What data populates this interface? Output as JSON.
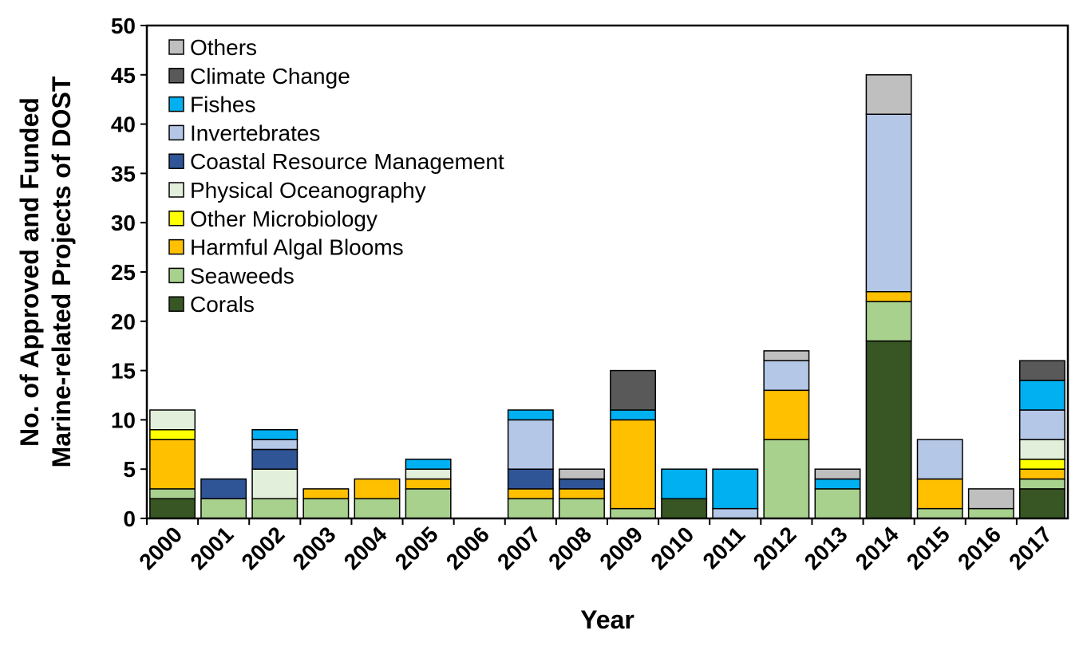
{
  "chart_data": {
    "type": "bar",
    "stacked": true,
    "title": "",
    "xlabel": "Year",
    "ylabel_line1": "No. of Approved and Funded",
    "ylabel_line2": "Marine-related Projects of DOST",
    "ylim": [
      0,
      50
    ],
    "ytick_step": 5,
    "grid": false,
    "legend_position": "top-left",
    "categories": [
      "2000",
      "2001",
      "2002",
      "2003",
      "2004",
      "2005",
      "2006",
      "2007",
      "2008",
      "2009",
      "2010",
      "2011",
      "2012",
      "2013",
      "2014",
      "2015",
      "2016",
      "2017"
    ],
    "series": [
      {
        "name": "Corals",
        "color": "#375623",
        "values": [
          2,
          0,
          0,
          0,
          0,
          0,
          0,
          0,
          0,
          0,
          2,
          0,
          0,
          0,
          18,
          0,
          0,
          3
        ]
      },
      {
        "name": "Seaweeds",
        "color": "#A9D18E",
        "values": [
          1,
          2,
          2,
          2,
          2,
          3,
          0,
          2,
          2,
          1,
          0,
          0,
          8,
          3,
          4,
          1,
          1,
          1
        ]
      },
      {
        "name": "Harmful Algal Blooms",
        "color": "#FFC000",
        "values": [
          5,
          0,
          0,
          1,
          2,
          1,
          0,
          1,
          1,
          9,
          0,
          0,
          5,
          0,
          1,
          3,
          0,
          1
        ]
      },
      {
        "name": "Other Microbiology",
        "color": "#FFFF00",
        "values": [
          1,
          0,
          0,
          0,
          0,
          0,
          0,
          0,
          0,
          0,
          0,
          0,
          0,
          0,
          0,
          0,
          0,
          1
        ]
      },
      {
        "name": "Physical Oceanography",
        "color": "#E2EFDA",
        "values": [
          2,
          0,
          3,
          0,
          0,
          1,
          0,
          0,
          0,
          0,
          0,
          0,
          0,
          0,
          0,
          0,
          0,
          2
        ]
      },
      {
        "name": "Coastal Resource Management",
        "color": "#2F5597",
        "values": [
          0,
          2,
          2,
          0,
          0,
          0,
          0,
          2,
          1,
          0,
          0,
          0,
          0,
          0,
          0,
          0,
          0,
          0
        ]
      },
      {
        "name": "Invertebrates",
        "color": "#B4C7E7",
        "values": [
          0,
          0,
          1,
          0,
          0,
          0,
          0,
          5,
          0,
          0,
          0,
          1,
          3,
          0,
          18,
          4,
          0,
          3
        ]
      },
      {
        "name": "Fishes",
        "color": "#00B0F0",
        "values": [
          0,
          0,
          1,
          0,
          0,
          1,
          0,
          1,
          0,
          1,
          3,
          4,
          0,
          1,
          0,
          0,
          0,
          3
        ]
      },
      {
        "name": "Climate Change",
        "color": "#595959",
        "values": [
          0,
          0,
          0,
          0,
          0,
          0,
          0,
          0,
          0,
          4,
          0,
          0,
          0,
          0,
          0,
          0,
          0,
          2
        ]
      },
      {
        "name": "Others",
        "color": "#BFBFBF",
        "values": [
          0,
          0,
          0,
          0,
          0,
          0,
          0,
          0,
          1,
          0,
          0,
          0,
          1,
          1,
          4,
          0,
          2,
          0
        ]
      }
    ]
  }
}
